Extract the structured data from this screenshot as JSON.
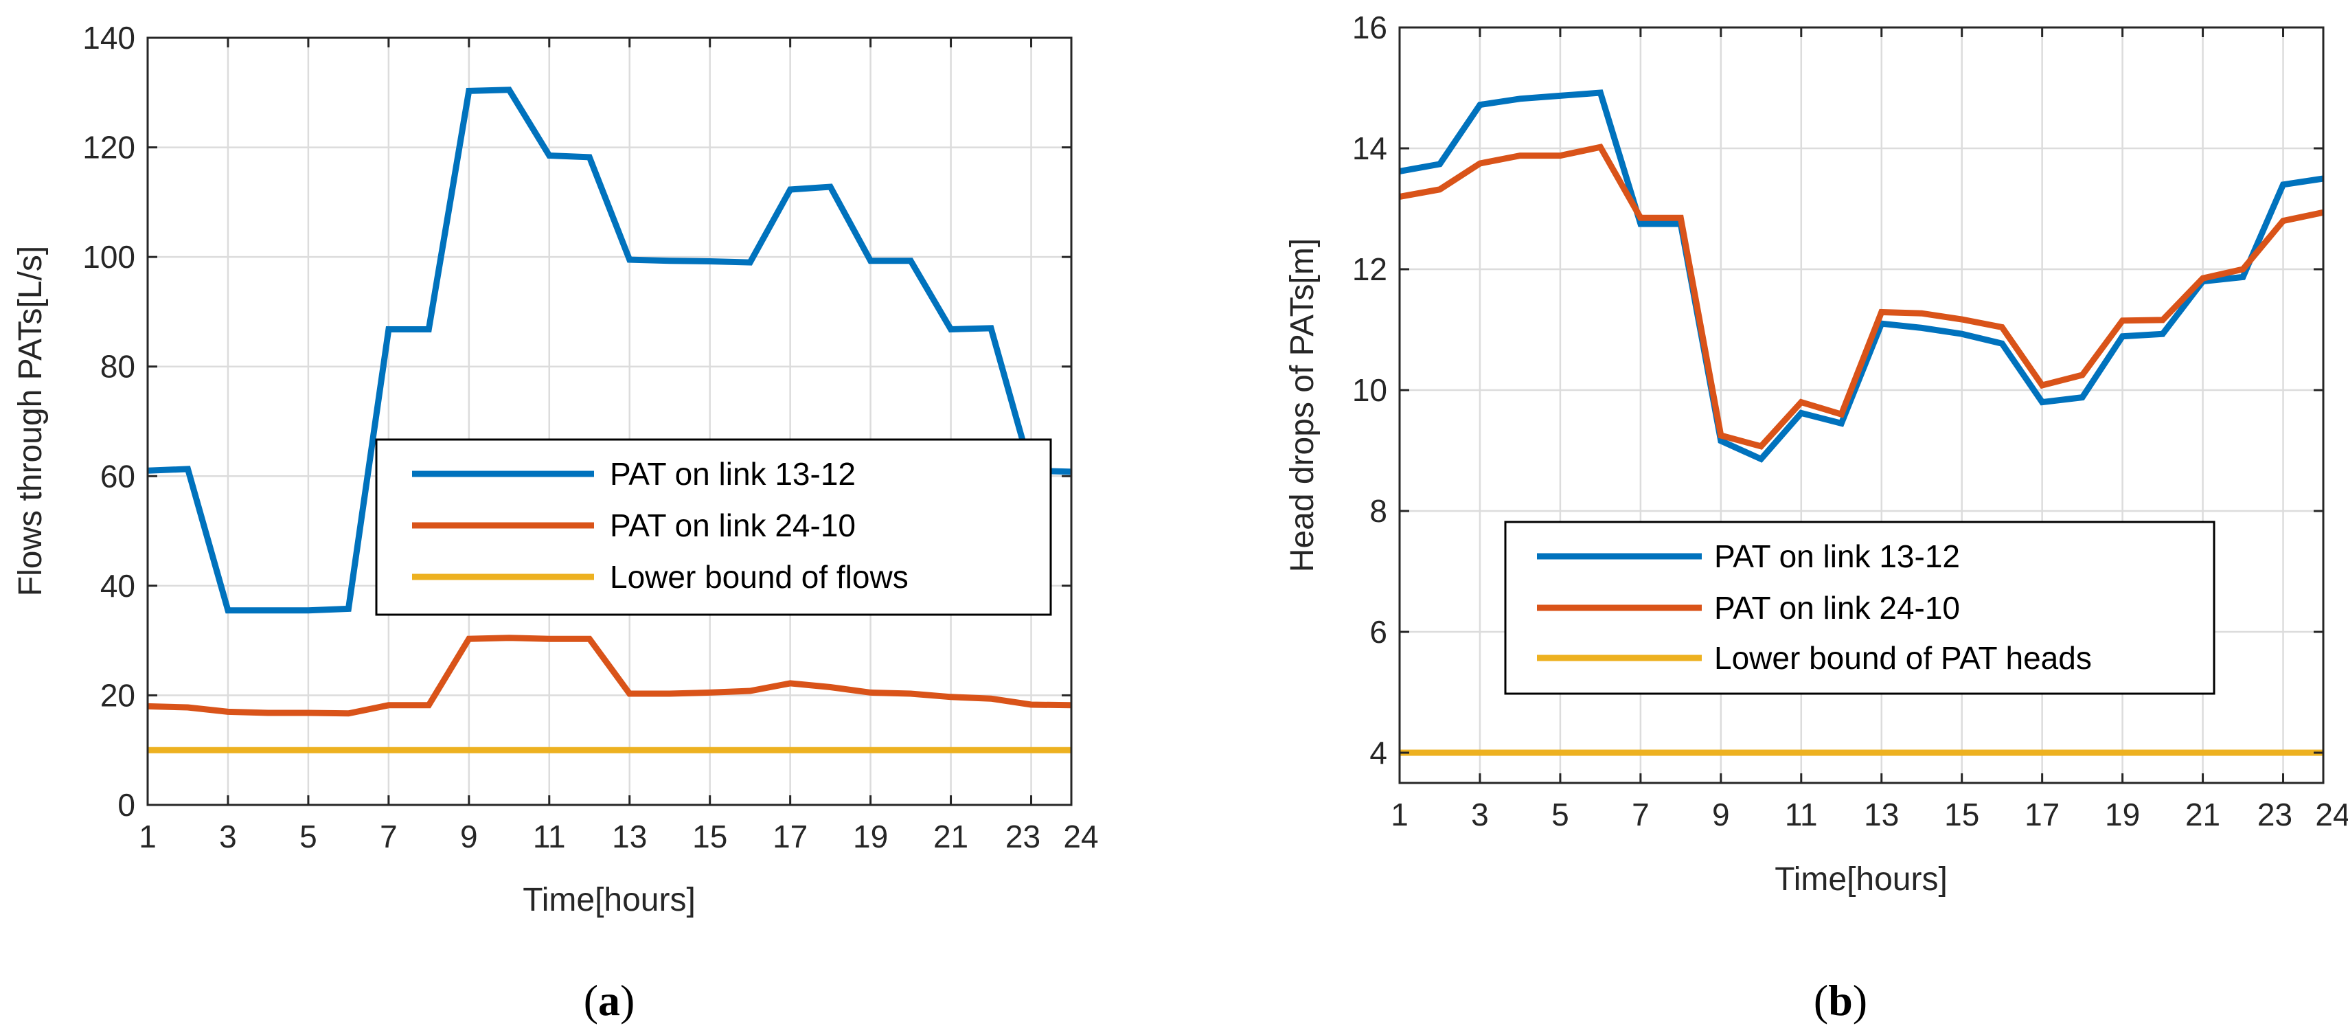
{
  "chart_data": [
    {
      "type": "line",
      "caption_letter": "a",
      "xlabel": "Time[hours]",
      "ylabel": "Flows through PATs[L/s]",
      "xlim": [
        1,
        24
      ],
      "ylim": [
        0,
        140
      ],
      "xticks": [
        1,
        3,
        5,
        7,
        9,
        11,
        13,
        15,
        17,
        19,
        21,
        23,
        24
      ],
      "xtick_labels": [
        "1",
        "3",
        "5",
        "7",
        "9",
        "11",
        "13",
        "15",
        "17",
        "19",
        "21",
        "23",
        "24"
      ],
      "yticks": [
        0,
        20,
        40,
        60,
        80,
        100,
        120,
        140
      ],
      "grid": true,
      "legend_position": "center-right",
      "x": [
        1,
        2,
        3,
        4,
        5,
        6,
        7,
        8,
        9,
        10,
        11,
        12,
        13,
        14,
        15,
        16,
        17,
        18,
        19,
        20,
        21,
        22,
        23,
        24
      ],
      "series": [
        {
          "name": "PAT on link 13-12",
          "color": "#0072BD",
          "values": [
            61,
            61.3,
            35.5,
            35.5,
            35.5,
            35.8,
            86.8,
            86.8,
            130.3,
            130.5,
            118.5,
            118.2,
            99.5,
            99.3,
            99.2,
            99,
            112.3,
            112.8,
            99.3,
            99.3,
            86.8,
            87,
            61,
            60.8
          ]
        },
        {
          "name": "PAT on link 24-10",
          "color": "#D95319",
          "values": [
            18,
            17.8,
            17,
            16.8,
            16.8,
            16.7,
            18.2,
            18.2,
            30.3,
            30.5,
            30.3,
            30.3,
            20.3,
            20.3,
            20.5,
            20.8,
            22.2,
            21.5,
            20.5,
            20.3,
            19.7,
            19.4,
            18.3,
            18.2
          ]
        },
        {
          "name": "Lower bound of flows",
          "color": "#EDB120",
          "values": [
            10,
            10,
            10,
            10,
            10,
            10,
            10,
            10,
            10,
            10,
            10,
            10,
            10,
            10,
            10,
            10,
            10,
            10,
            10,
            10,
            10,
            10,
            10,
            10
          ]
        }
      ]
    },
    {
      "type": "line",
      "caption_letter": "b",
      "xlabel": "Time[hours]",
      "ylabel": "Head drops of PATs[m]",
      "xlim": [
        1,
        24
      ],
      "ylim": [
        3.5,
        16
      ],
      "xticks": [
        1,
        3,
        5,
        7,
        9,
        11,
        13,
        15,
        17,
        19,
        21,
        23,
        24
      ],
      "xtick_labels": [
        "1",
        "3",
        "5",
        "7",
        "9",
        "11",
        "13",
        "15",
        "17",
        "19",
        "21",
        "23",
        "24"
      ],
      "yticks": [
        4,
        6,
        8,
        10,
        12,
        14,
        16
      ],
      "grid": true,
      "legend_position": "center",
      "x": [
        1,
        2,
        3,
        4,
        5,
        6,
        7,
        8,
        9,
        10,
        11,
        12,
        13,
        14,
        15,
        16,
        17,
        18,
        19,
        20,
        21,
        22,
        23,
        24
      ],
      "series": [
        {
          "name": "PAT on link 13-12",
          "color": "#0072BD",
          "values": [
            13.62,
            13.74,
            14.72,
            14.82,
            14.87,
            14.92,
            12.75,
            12.75,
            9.16,
            8.86,
            9.62,
            9.45,
            11.1,
            11.03,
            10.93,
            10.77,
            9.8,
            9.88,
            10.89,
            10.93,
            11.8,
            11.87,
            13.4,
            13.5
          ]
        },
        {
          "name": "PAT on link 24-10",
          "color": "#D95319",
          "values": [
            13.2,
            13.32,
            13.75,
            13.88,
            13.88,
            14.02,
            12.85,
            12.85,
            9.25,
            9.07,
            9.8,
            9.6,
            11.29,
            11.27,
            11.17,
            11.04,
            10.08,
            10.25,
            11.15,
            11.16,
            11.85,
            12.0,
            12.8,
            12.94
          ]
        },
        {
          "name": "Lower bound of PAT heads",
          "color": "#EDB120",
          "values": [
            4,
            4,
            4,
            4,
            4,
            4,
            4,
            4,
            4,
            4,
            4,
            4,
            4,
            4,
            4,
            4,
            4,
            4,
            4,
            4,
            4,
            4,
            4,
            4
          ]
        }
      ]
    }
  ]
}
